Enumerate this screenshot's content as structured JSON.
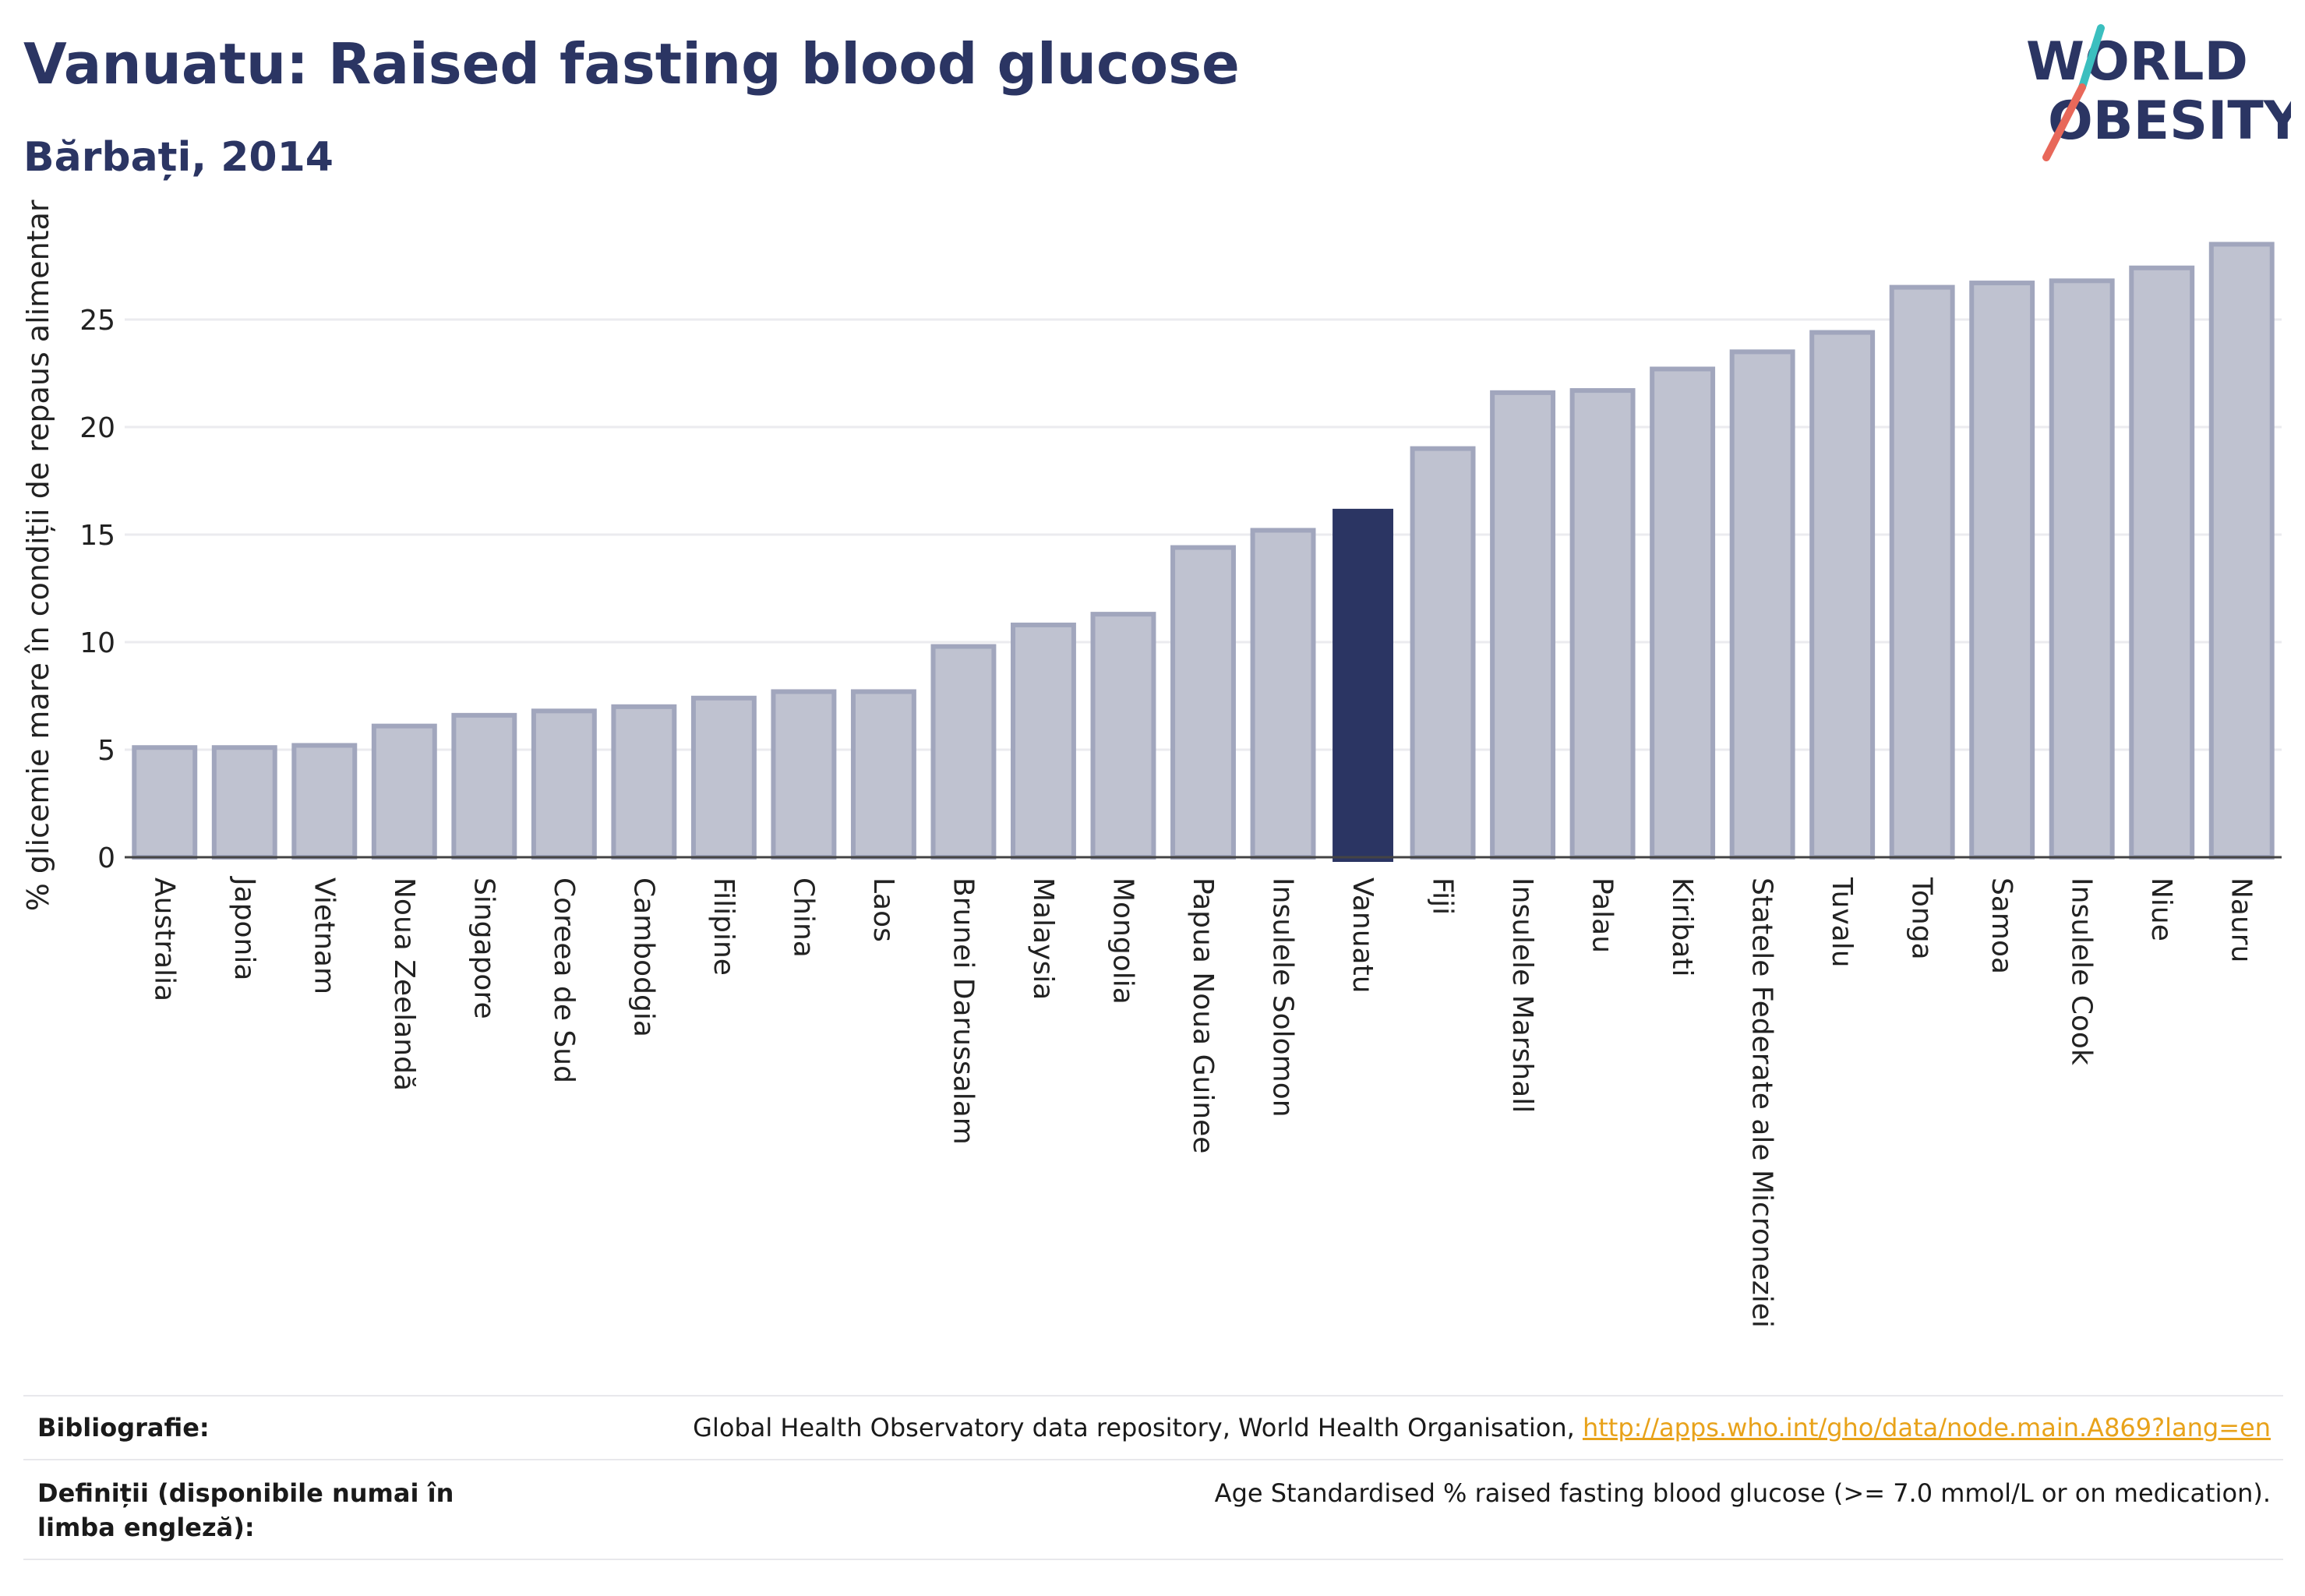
{
  "header": {
    "title": "Vanuatu: Raised fasting blood glucose",
    "subtitle": "Bărbați, 2014"
  },
  "logo": {
    "line1": "WORLD",
    "line2": "OBESITY"
  },
  "colors": {
    "highlight": "#2b3563",
    "bar_fill": "#bfc2d0",
    "bar_stroke": "#a1a6bd",
    "grid": "#ebebef",
    "axis": "#444444",
    "logo_teal": "#3bbfbf",
    "logo_red": "#e8685a",
    "link": "#e8a21a"
  },
  "chart_data": {
    "type": "bar",
    "ylabel": "% glicemie mare în condiții de repaus alimentar",
    "xlabel": "",
    "yticks": [
      0,
      5,
      10,
      15,
      20,
      25
    ],
    "ylim": [
      0,
      29.5
    ],
    "highlight": "Vanuatu",
    "grid": true,
    "categories": [
      "Australia",
      "Japonia",
      "Vietnam",
      "Noua Zeelandă",
      "Singapore",
      "Coreea de Sud",
      "Cambodgia",
      "Filipine",
      "China",
      "Laos",
      "Brunei Darussalam",
      "Malaysia",
      "Mongolia",
      "Papua Noua Guinee",
      "Insulele Solomon",
      "Vanuatu",
      "Fiji",
      "Insulele Marshall",
      "Palau",
      "Kiribati",
      "Statele Federate ale Microneziei",
      "Tuvalu",
      "Tonga",
      "Samoa",
      "Insulele Cook",
      "Niue",
      "Nauru"
    ],
    "values": [
      5.1,
      5.1,
      5.2,
      6.1,
      6.6,
      6.8,
      7.0,
      7.4,
      7.7,
      7.7,
      9.8,
      10.8,
      11.3,
      14.4,
      15.2,
      16.2,
      19.0,
      21.6,
      21.7,
      22.7,
      23.5,
      24.4,
      26.5,
      26.7,
      26.8,
      27.4,
      28.5
    ]
  },
  "footer": {
    "bib_label": "Bibliografie:",
    "bib_text": "Global Health Observatory data repository, World Health Organisation, ",
    "bib_link": "http://apps.who.int/gho/data/node.main.A869?lang=en",
    "def_label": "Definiții (disponibile numai în limba engleză):",
    "def_text": "Age Standardised % raised fasting blood glucose (>= 7.0 mmol/L or on medication)."
  }
}
